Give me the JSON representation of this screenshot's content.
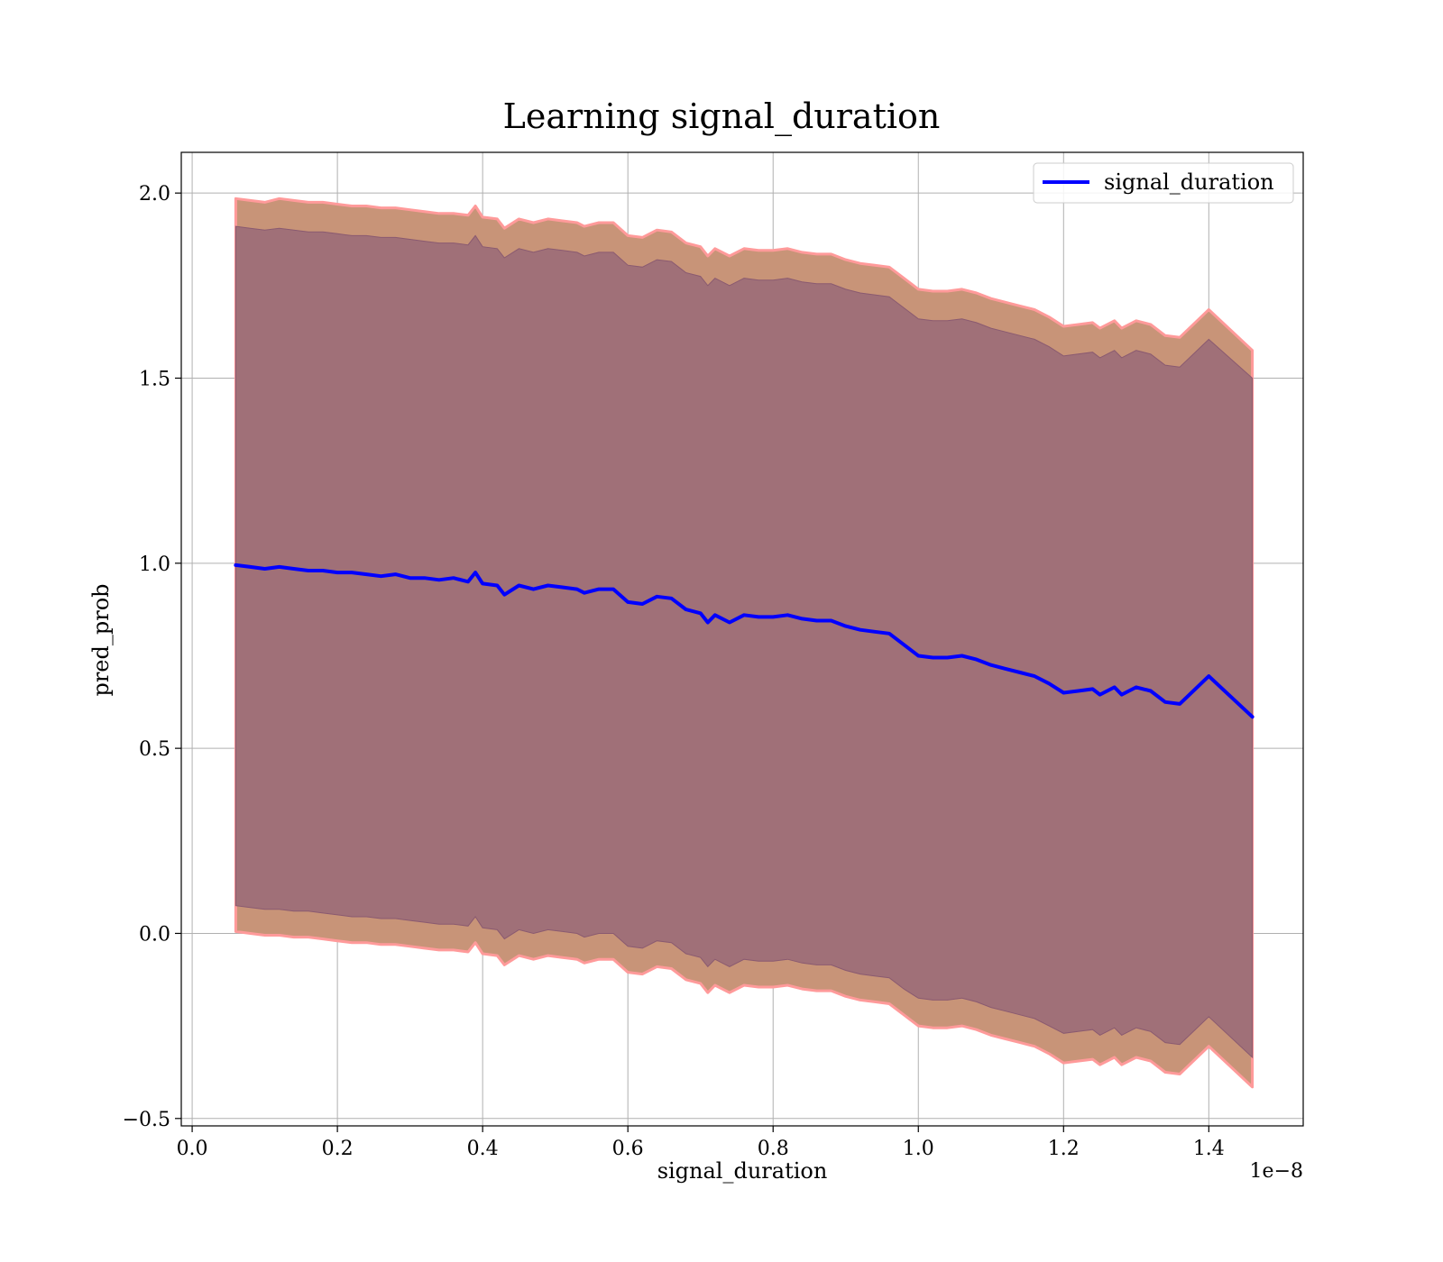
{
  "chart_data": {
    "type": "line",
    "title": "Learning signal_duration",
    "xlabel": "signal_duration",
    "ylabel": "pred_prob",
    "x_offset_label": "1e−8",
    "xlim": [
      -0.015,
      1.53
    ],
    "ylim": [
      -0.52,
      2.11
    ],
    "xticks": [
      0.0,
      0.2,
      0.4,
      0.6,
      0.8,
      1.0,
      1.2,
      1.4
    ],
    "xtick_labels": [
      "0.0",
      "0.2",
      "0.4",
      "0.6",
      "0.8",
      "1.0",
      "1.2",
      "1.4"
    ],
    "yticks": [
      -0.5,
      0.0,
      0.5,
      1.0,
      1.5,
      2.0
    ],
    "ytick_labels": [
      "−0.5",
      "0.0",
      "0.5",
      "1.0",
      "1.5",
      "2.0"
    ],
    "grid": true,
    "legend_position": "top-right",
    "colors": {
      "line": "#0000ff",
      "outer_band": "#c89478",
      "outer_band_edge": "#ff9a9a",
      "inner_band": "#a07078",
      "grid": "#b0b0b0"
    },
    "series": [
      {
        "name": "signal_duration",
        "x": [
          0.06,
          0.08,
          0.1,
          0.12,
          0.14,
          0.16,
          0.18,
          0.2,
          0.22,
          0.24,
          0.26,
          0.28,
          0.3,
          0.32,
          0.34,
          0.36,
          0.38,
          0.39,
          0.4,
          0.42,
          0.43,
          0.45,
          0.47,
          0.49,
          0.51,
          0.53,
          0.54,
          0.56,
          0.58,
          0.6,
          0.62,
          0.64,
          0.66,
          0.68,
          0.7,
          0.71,
          0.72,
          0.74,
          0.76,
          0.78,
          0.8,
          0.82,
          0.84,
          0.86,
          0.88,
          0.9,
          0.92,
          0.94,
          0.96,
          0.98,
          1.0,
          1.02,
          1.04,
          1.06,
          1.08,
          1.1,
          1.12,
          1.14,
          1.16,
          1.18,
          1.2,
          1.22,
          1.24,
          1.25,
          1.27,
          1.28,
          1.3,
          1.32,
          1.34,
          1.36,
          1.4,
          1.46
        ],
        "values": [
          0.995,
          0.99,
          0.985,
          0.99,
          0.985,
          0.98,
          0.98,
          0.975,
          0.975,
          0.97,
          0.965,
          0.97,
          0.96,
          0.96,
          0.955,
          0.96,
          0.95,
          0.975,
          0.945,
          0.94,
          0.915,
          0.94,
          0.93,
          0.94,
          0.935,
          0.93,
          0.92,
          0.93,
          0.93,
          0.895,
          0.89,
          0.91,
          0.905,
          0.875,
          0.865,
          0.84,
          0.86,
          0.84,
          0.86,
          0.855,
          0.855,
          0.86,
          0.85,
          0.845,
          0.845,
          0.83,
          0.82,
          0.815,
          0.81,
          0.78,
          0.75,
          0.745,
          0.745,
          0.75,
          0.74,
          0.725,
          0.715,
          0.705,
          0.695,
          0.675,
          0.65,
          0.655,
          0.66,
          0.645,
          0.665,
          0.645,
          0.665,
          0.655,
          0.625,
          0.62,
          0.695,
          0.585
        ],
        "outer_lower": [
          0.005,
          0.0,
          -0.005,
          -0.005,
          -0.01,
          -0.01,
          -0.015,
          -0.02,
          -0.025,
          -0.025,
          -0.03,
          -0.03,
          -0.035,
          -0.04,
          -0.045,
          -0.045,
          -0.05,
          -0.025,
          -0.055,
          -0.06,
          -0.085,
          -0.06,
          -0.07,
          -0.06,
          -0.065,
          -0.07,
          -0.08,
          -0.07,
          -0.07,
          -0.105,
          -0.11,
          -0.09,
          -0.095,
          -0.125,
          -0.135,
          -0.16,
          -0.14,
          -0.16,
          -0.14,
          -0.145,
          -0.145,
          -0.14,
          -0.15,
          -0.155,
          -0.155,
          -0.17,
          -0.18,
          -0.185,
          -0.19,
          -0.22,
          -0.25,
          -0.255,
          -0.255,
          -0.25,
          -0.26,
          -0.275,
          -0.285,
          -0.295,
          -0.305,
          -0.325,
          -0.35,
          -0.345,
          -0.34,
          -0.355,
          -0.335,
          -0.355,
          -0.335,
          -0.345,
          -0.375,
          -0.38,
          -0.305,
          -0.415
        ],
        "outer_upper": [
          1.985,
          1.98,
          1.975,
          1.985,
          1.98,
          1.975,
          1.975,
          1.97,
          1.965,
          1.965,
          1.96,
          1.96,
          1.955,
          1.95,
          1.945,
          1.945,
          1.94,
          1.965,
          1.935,
          1.93,
          1.905,
          1.93,
          1.92,
          1.93,
          1.925,
          1.92,
          1.91,
          1.92,
          1.92,
          1.885,
          1.88,
          1.9,
          1.895,
          1.865,
          1.855,
          1.83,
          1.85,
          1.83,
          1.85,
          1.845,
          1.845,
          1.85,
          1.84,
          1.835,
          1.835,
          1.82,
          1.81,
          1.805,
          1.8,
          1.77,
          1.74,
          1.735,
          1.735,
          1.74,
          1.73,
          1.715,
          1.705,
          1.695,
          1.685,
          1.665,
          1.64,
          1.645,
          1.65,
          1.635,
          1.655,
          1.635,
          1.655,
          1.645,
          1.615,
          1.61,
          1.685,
          1.575
        ],
        "inner_lower": [
          0.075,
          0.07,
          0.065,
          0.065,
          0.06,
          0.06,
          0.055,
          0.05,
          0.045,
          0.045,
          0.04,
          0.04,
          0.035,
          0.03,
          0.025,
          0.025,
          0.02,
          0.045,
          0.015,
          0.01,
          -0.015,
          0.01,
          0.0,
          0.01,
          0.005,
          0.0,
          -0.01,
          0.0,
          0.0,
          -0.035,
          -0.04,
          -0.02,
          -0.025,
          -0.055,
          -0.065,
          -0.09,
          -0.07,
          -0.09,
          -0.07,
          -0.075,
          -0.075,
          -0.07,
          -0.08,
          -0.085,
          -0.085,
          -0.1,
          -0.11,
          -0.115,
          -0.12,
          -0.15,
          -0.175,
          -0.18,
          -0.18,
          -0.175,
          -0.185,
          -0.2,
          -0.21,
          -0.22,
          -0.23,
          -0.25,
          -0.27,
          -0.265,
          -0.26,
          -0.275,
          -0.255,
          -0.275,
          -0.255,
          -0.265,
          -0.295,
          -0.3,
          -0.225,
          -0.335
        ],
        "inner_upper": [
          1.91,
          1.905,
          1.9,
          1.905,
          1.9,
          1.895,
          1.895,
          1.89,
          1.885,
          1.885,
          1.88,
          1.88,
          1.875,
          1.87,
          1.865,
          1.865,
          1.86,
          1.885,
          1.855,
          1.85,
          1.825,
          1.85,
          1.84,
          1.85,
          1.845,
          1.84,
          1.83,
          1.84,
          1.84,
          1.805,
          1.8,
          1.82,
          1.815,
          1.785,
          1.775,
          1.75,
          1.77,
          1.75,
          1.77,
          1.765,
          1.765,
          1.77,
          1.76,
          1.755,
          1.755,
          1.74,
          1.73,
          1.725,
          1.72,
          1.69,
          1.66,
          1.655,
          1.655,
          1.66,
          1.65,
          1.635,
          1.625,
          1.615,
          1.605,
          1.585,
          1.56,
          1.565,
          1.57,
          1.555,
          1.575,
          1.555,
          1.575,
          1.565,
          1.535,
          1.53,
          1.605,
          1.5
        ]
      }
    ]
  }
}
